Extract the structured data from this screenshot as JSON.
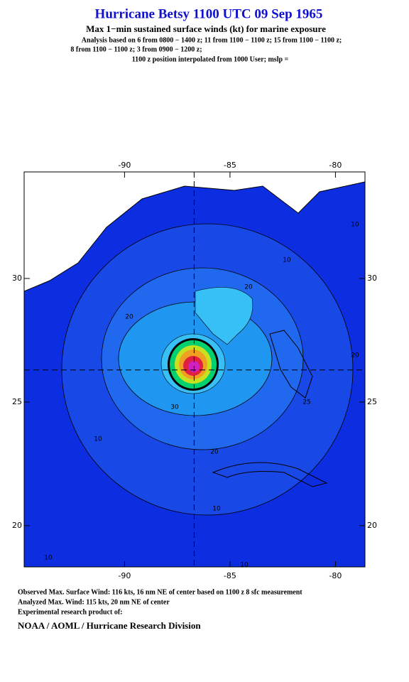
{
  "header": {
    "title": "Hurricane Betsy 1100 UTC 09 Sep 1965",
    "subtitle": "Max 1−min sustained surface winds (kt) for marine exposure",
    "notes": [
      "Analysis based on  6 from 0800 − 1400 z;  11 from 1100 − 1100 z;  15 from 1100 − 1100 z;",
      "8 from 1100 − 1100 z;  3 from 0900 − 1200 z;",
      "1100 z position interpolated from 1000 User; mslp ="
    ]
  },
  "map": {
    "xlim": [
      -94.76,
      -78.6
    ],
    "ylim": [
      18.33,
      34.31
    ],
    "xticks": [
      -90,
      -85,
      -80
    ],
    "yticks": [
      20,
      25,
      30
    ],
    "center": [
      -86.7,
      26.3
    ],
    "contour_labels": [
      "10",
      "10",
      "10",
      "10",
      "10",
      "10",
      "20",
      "20",
      "20",
      "20",
      "30",
      "25"
    ]
  },
  "footer": {
    "lines": [
      "Observed Max. Surface Wind: 116 kts, 16 nm NE of center based on 1100 z 8 sfc measurement",
      "Analyzed Max. Wind: 115 kts, 20 nm NE of center",
      "Experimental research product of:"
    ],
    "org": "NOAA / AOML / Hurricane Research Division"
  }
}
